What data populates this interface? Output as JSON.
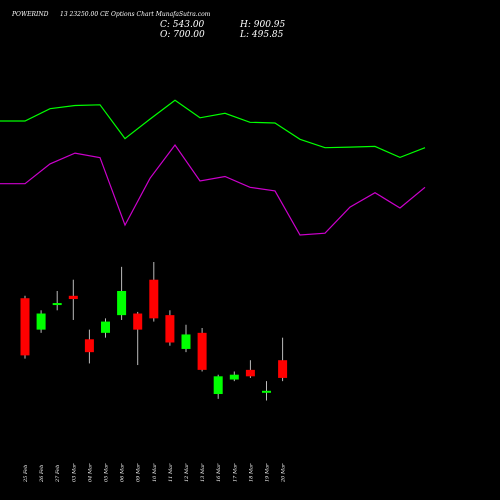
{
  "header": {
    "symbol": "POWERIND",
    "subtitle": "13 23250.00  CE Options  Chart MunafaSutra.com",
    "close": "C: 543.00",
    "open": "O: 700.00",
    "high": "H: 900.95",
    "low": "L: 495.85"
  },
  "colors": {
    "background": "#000000",
    "line_top": "#00ff00",
    "line_bottom": "#cc00cc",
    "candle_up": "#00ff00",
    "candle_down": "#ff0000",
    "wick": "#bbbbbb",
    "text": "#ffffff"
  },
  "chart_data": {
    "type": "candlestick",
    "categories": [
      "25 Feb",
      "26 Feb",
      "27 Feb",
      "03 Mar",
      "04 Mar",
      "05 Mar",
      "06 Mar",
      "09 Mar",
      "10 Mar",
      "11 Mar",
      "12 Mar",
      "13 Mar",
      "16 Mar",
      "17 Mar",
      "18 Mar",
      "19 Mar",
      "20 Mar"
    ],
    "candles": [
      {
        "open": 0.775,
        "close": 0.42,
        "high": 0.79,
        "low": 0.4,
        "dir": "down"
      },
      {
        "open": 0.58,
        "close": 0.68,
        "high": 0.7,
        "low": 0.56,
        "dir": "up"
      },
      {
        "open": 0.735,
        "close": 0.745,
        "high": 0.82,
        "low": 0.7,
        "dir": "up"
      },
      {
        "open": 0.79,
        "close": 0.77,
        "high": 0.89,
        "low": 0.64,
        "dir": "down"
      },
      {
        "open": 0.52,
        "close": 0.44,
        "high": 0.58,
        "low": 0.37,
        "dir": "down"
      },
      {
        "open": 0.56,
        "close": 0.63,
        "high": 0.65,
        "low": 0.53,
        "dir": "up"
      },
      {
        "open": 0.67,
        "close": 0.82,
        "high": 0.97,
        "low": 0.64,
        "dir": "up"
      },
      {
        "open": 0.68,
        "close": 0.58,
        "high": 0.69,
        "low": 0.36,
        "dir": "down"
      },
      {
        "open": 0.89,
        "close": 0.65,
        "high": 1.0,
        "low": 0.63,
        "dir": "down"
      },
      {
        "open": 0.67,
        "close": 0.5,
        "high": 0.7,
        "low": 0.48,
        "dir": "down"
      },
      {
        "open": 0.46,
        "close": 0.55,
        "high": 0.61,
        "low": 0.44,
        "dir": "up"
      },
      {
        "open": 0.56,
        "close": 0.33,
        "high": 0.59,
        "low": 0.32,
        "dir": "down"
      },
      {
        "open": 0.18,
        "close": 0.29,
        "high": 0.3,
        "low": 0.15,
        "dir": "up"
      },
      {
        "open": 0.27,
        "close": 0.3,
        "high": 0.32,
        "low": 0.26,
        "dir": "up"
      },
      {
        "open": 0.33,
        "close": 0.29,
        "high": 0.39,
        "low": 0.28,
        "dir": "down"
      },
      {
        "open": 0.19,
        "close": 0.2,
        "high": 0.26,
        "low": 0.14,
        "dir": "up"
      },
      {
        "open": 0.39,
        "close": 0.28,
        "high": 0.53,
        "low": 0.26,
        "dir": "down"
      }
    ],
    "line_series": [
      {
        "values": [
          0.63,
          0.63,
          0.82,
          0.87,
          0.88,
          0.36,
          0.66,
          0.95,
          0.68,
          0.75,
          0.61,
          0.6,
          0.35,
          0.22,
          0.23,
          0.24,
          0.07,
          0.22
        ]
      },
      {
        "values": [
          0.57,
          0.57,
          0.79,
          0.91,
          0.86,
          0.11,
          0.63,
          1.0,
          0.6,
          0.65,
          0.53,
          0.49,
          0.0,
          0.02,
          0.31,
          0.47,
          0.3,
          0.53
        ]
      }
    ]
  }
}
